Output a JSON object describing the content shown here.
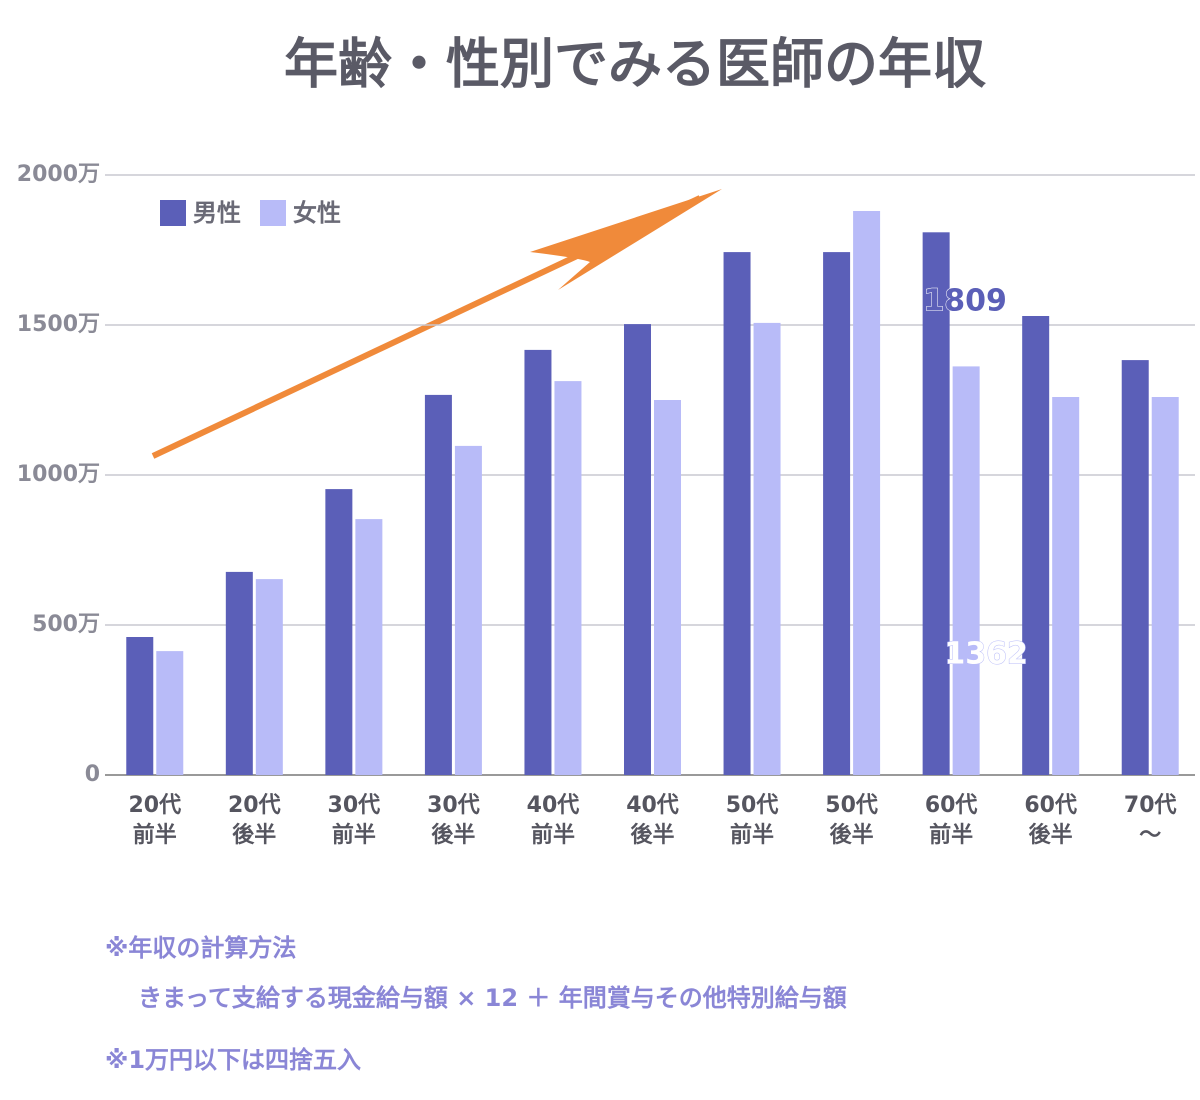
{
  "chart_data": {
    "type": "bar",
    "title": "年齢・性別でみる医師の年収",
    "categories": [
      "20代\n前半",
      "20代\n後半",
      "30代\n前半",
      "30代\n後半",
      "40代\n前半",
      "40代\n後半",
      "50代\n前半",
      "50代\n後半",
      "60代\n前半",
      "60代\n後半",
      "70代\n〜"
    ],
    "series": [
      {
        "name": "男性",
        "color": "#5b5fb8",
        "values": [
          460,
          677,
          953,
          1267,
          1417,
          1503,
          1743,
          1743,
          1809,
          1530,
          1383
        ]
      },
      {
        "name": "女性",
        "color": "#b8bbf8",
        "values": [
          413,
          653,
          853,
          1097,
          1313,
          1250,
          1507,
          1880,
          1362,
          1260,
          1260
        ]
      }
    ],
    "ylim": [
      0,
      2000
    ],
    "yticks": [
      0,
      {
        "value": 500,
        "label": "500万"
      },
      {
        "value": 1000,
        "label": "1000万"
      },
      {
        "value": 1500,
        "label": "1500万"
      },
      {
        "value": 2000,
        "label": "2000万"
      }
    ],
    "grid": true
  },
  "notes": [
    "※年収の計算方法",
    "きまって支給する現金給与額 × 12 ＋ 年間賞与その他特別給与額",
    "※1万円以下は四捨五入"
  ]
}
